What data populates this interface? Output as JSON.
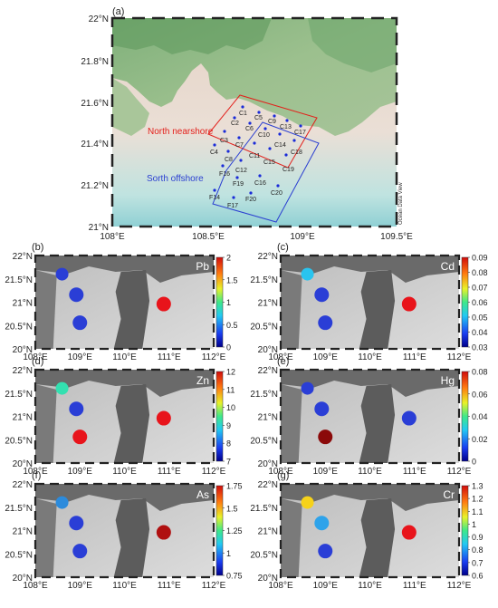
{
  "panel_a": {
    "letter": "(a)",
    "lat_labels": [
      "22°N",
      "21.8°N",
      "21.6°N",
      "21.4°N",
      "21.2°N",
      "21°N"
    ],
    "lon_labels": [
      "108°E",
      "108.5°E",
      "109°E",
      "109.5°E"
    ],
    "region_north": "North nearshore",
    "region_south": "Sorth offshore",
    "watermark": "Ocean Data View",
    "colors": {
      "north": "#e3201b",
      "south": "#2b3fd1",
      "station": "#1a2bd8"
    },
    "stations": [
      {
        "id": "C1"
      },
      {
        "id": "C5"
      },
      {
        "id": "C9"
      },
      {
        "id": "C13"
      },
      {
        "id": "C17"
      },
      {
        "id": "C2"
      },
      {
        "id": "C6"
      },
      {
        "id": "C10"
      },
      {
        "id": "C14"
      },
      {
        "id": "C18"
      },
      {
        "id": "C3"
      },
      {
        "id": "C7"
      },
      {
        "id": "C11"
      },
      {
        "id": "C15"
      },
      {
        "id": "C19"
      },
      {
        "id": "C4"
      },
      {
        "id": "C8"
      },
      {
        "id": "F16"
      },
      {
        "id": "C12"
      },
      {
        "id": "F19"
      },
      {
        "id": "C16"
      },
      {
        "id": "C20"
      },
      {
        "id": "F14"
      },
      {
        "id": "F17"
      },
      {
        "id": "F20"
      }
    ]
  },
  "small_panels": {
    "lat_labels": [
      "22°N",
      "21.5°N",
      "21°N",
      "20.5°N",
      "20°N"
    ],
    "lon_labels": [
      "108°E",
      "109°E",
      "110°E",
      "111°E",
      "112°E"
    ],
    "panels": [
      {
        "letter": "(b)",
        "metal": "Pb",
        "ticks": [
          "2",
          "1.5",
          "1",
          "0.5",
          "0"
        ],
        "colorbar": "jet",
        "dots": [
          {
            "value_color": "#2a3ed6"
          },
          {
            "value_color": "#2a3ed6"
          },
          {
            "value_color": "#2a3ed6"
          },
          {
            "value_color": "#e8141b"
          }
        ]
      },
      {
        "letter": "(c)",
        "metal": "Cd",
        "ticks": [
          "0.09",
          "0.08",
          "0.07",
          "0.06",
          "0.05",
          "0.04",
          "0.03"
        ],
        "colorbar": "jet",
        "dots": [
          {
            "value_color": "#29c4ef"
          },
          {
            "value_color": "#2a3ed6"
          },
          {
            "value_color": "#2a3ed6"
          },
          {
            "value_color": "#e8141b"
          }
        ]
      },
      {
        "letter": "(d)",
        "metal": "Zn",
        "ticks": [
          "12",
          "11",
          "10",
          "9",
          "8",
          "7"
        ],
        "colorbar": "jet",
        "dots": [
          {
            "value_color": "#33e0b0"
          },
          {
            "value_color": "#2a3ed6"
          },
          {
            "value_color": "#e8141b"
          },
          {
            "value_color": "#e8141b"
          }
        ]
      },
      {
        "letter": "(e)",
        "metal": "Hg",
        "ticks": [
          "0.08",
          "0.06",
          "0.04",
          "0.02",
          "0"
        ],
        "colorbar": "jet",
        "dots": [
          {
            "value_color": "#2a3ed6"
          },
          {
            "value_color": "#2a3ed6"
          },
          {
            "value_color": "#8b0a0a"
          },
          {
            "value_color": "#2a3ed6"
          }
        ]
      },
      {
        "letter": "(f)",
        "metal": "As",
        "ticks": [
          "1.75",
          "1.5",
          "1.25",
          "1",
          "0.75"
        ],
        "colorbar": "jet",
        "dots": [
          {
            "value_color": "#2c8bdc"
          },
          {
            "value_color": "#2a3ed6"
          },
          {
            "value_color": "#2a3ed6"
          },
          {
            "value_color": "#b01010"
          }
        ]
      },
      {
        "letter": "(g)",
        "metal": "Cr",
        "ticks": [
          "1.3",
          "1.2",
          "1.1",
          "1",
          "0.9",
          "0.8",
          "0.7",
          "0.6"
        ],
        "colorbar": "jet",
        "dots": [
          {
            "value_color": "#f6d21a"
          },
          {
            "value_color": "#2ea3ea"
          },
          {
            "value_color": "#2a3ed6"
          },
          {
            "value_color": "#e8141b"
          }
        ]
      }
    ]
  }
}
